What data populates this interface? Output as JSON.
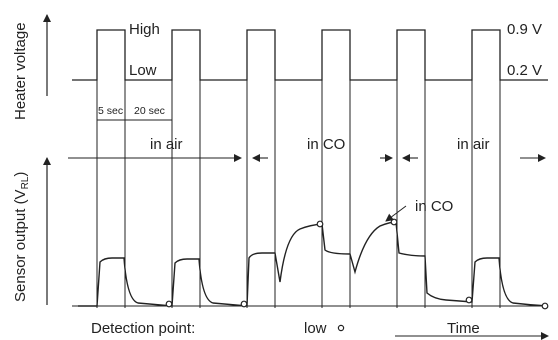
{
  "labels": {
    "y_top": "Heater voltage",
    "y_bottom_prefix": "Sensor output (V",
    "y_bottom_sub": "RL",
    "y_bottom_suffix": ")",
    "high": "High",
    "low": "Low",
    "high_voltage": "0.9 V",
    "low_voltage": "0.2 V",
    "dur_high": "5 sec",
    "dur_low": "20 sec",
    "seg_air_1": "in air",
    "seg_co": "in CO",
    "seg_air_2": "in air",
    "co_callout": "in CO",
    "detection": "Detection point:",
    "detection_value": "low",
    "time": "Time"
  },
  "colors": {
    "line": "#222222"
  }
}
